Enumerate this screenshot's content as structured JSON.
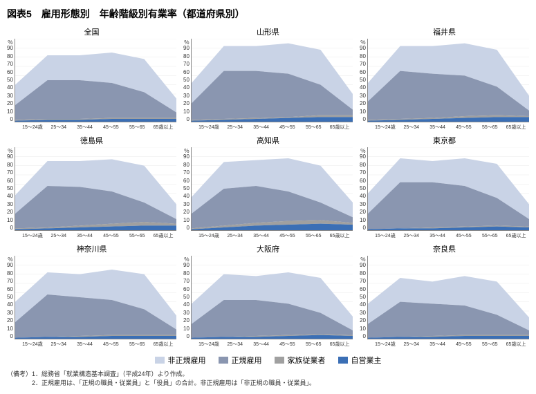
{
  "title": "図表5　雇用形態別　年齢階級別有業率（都道府県別）",
  "y_unit": "％",
  "y_ticks": [
    0,
    10,
    20,
    30,
    40,
    50,
    60,
    70,
    80,
    90
  ],
  "x_labels": [
    "15～24歳",
    "25～34",
    "35～44",
    "45～55",
    "55～65",
    "65歳以上"
  ],
  "colors": {
    "nonregular": "#c9d3e6",
    "regular": "#8a96b0",
    "family": "#a0a0a0",
    "self": "#3b6fb5",
    "grid": "#eeeeee",
    "axis": "#888888"
  },
  "legend": [
    {
      "label": "非正規雇用",
      "color": "#c9d3e6"
    },
    {
      "label": "正規雇用",
      "color": "#8a96b0"
    },
    {
      "label": "家族従業者",
      "color": "#a0a0a0"
    },
    {
      "label": "自営業主",
      "color": "#3b6fb5"
    }
  ],
  "panels": [
    {
      "title": "全国",
      "series": {
        "self": [
          1,
          2,
          2,
          3,
          3,
          3
        ],
        "family": [
          2,
          3,
          3,
          4,
          4,
          4
        ],
        "regular": [
          18,
          45,
          45,
          42,
          32,
          10
        ],
        "nonregular": [
          40,
          72,
          72,
          75,
          68,
          25
        ]
      }
    },
    {
      "title": "山形県",
      "series": {
        "self": [
          1,
          2,
          3,
          4,
          5,
          5
        ],
        "family": [
          2,
          3,
          4,
          5,
          7,
          7
        ],
        "regular": [
          20,
          55,
          55,
          52,
          40,
          13
        ],
        "nonregular": [
          42,
          82,
          82,
          85,
          78,
          30
        ]
      }
    },
    {
      "title": "福井県",
      "series": {
        "self": [
          1,
          2,
          3,
          4,
          5,
          5
        ],
        "family": [
          2,
          3,
          4,
          6,
          7,
          6
        ],
        "regular": [
          22,
          55,
          52,
          50,
          38,
          12
        ],
        "nonregular": [
          42,
          82,
          82,
          85,
          78,
          28
        ]
      }
    },
    {
      "title": "徳島県",
      "series": {
        "self": [
          1,
          2,
          3,
          4,
          5,
          5
        ],
        "family": [
          2,
          3,
          5,
          7,
          9,
          7
        ],
        "regular": [
          18,
          48,
          47,
          42,
          30,
          12
        ],
        "nonregular": [
          38,
          75,
          75,
          77,
          70,
          28
        ]
      }
    },
    {
      "title": "高知県",
      "series": {
        "self": [
          1,
          3,
          5,
          6,
          7,
          6
        ],
        "family": [
          2,
          5,
          8,
          10,
          11,
          8
        ],
        "regular": [
          18,
          45,
          48,
          42,
          30,
          14
        ],
        "nonregular": [
          36,
          74,
          76,
          78,
          70,
          30
        ]
      }
    },
    {
      "title": "東京都",
      "series": {
        "self": [
          1,
          2,
          2,
          3,
          4,
          3
        ],
        "family": [
          1,
          2,
          3,
          4,
          5,
          4
        ],
        "regular": [
          18,
          52,
          52,
          48,
          35,
          12
        ],
        "nonregular": [
          40,
          78,
          75,
          78,
          72,
          28
        ]
      }
    },
    {
      "title": "神奈川県",
      "series": {
        "self": [
          1,
          2,
          2,
          3,
          3,
          3
        ],
        "family": [
          1,
          2,
          3,
          4,
          4,
          4
        ],
        "regular": [
          18,
          48,
          45,
          42,
          32,
          10
        ],
        "nonregular": [
          40,
          72,
          70,
          75,
          70,
          25
        ]
      }
    },
    {
      "title": "大阪府",
      "series": {
        "self": [
          1,
          2,
          2,
          3,
          4,
          3
        ],
        "family": [
          1,
          2,
          3,
          4,
          5,
          4
        ],
        "regular": [
          16,
          42,
          42,
          38,
          28,
          9
        ],
        "nonregular": [
          38,
          70,
          68,
          72,
          66,
          24
        ]
      }
    },
    {
      "title": "奈良県",
      "series": {
        "self": [
          1,
          2,
          2,
          3,
          3,
          3
        ],
        "family": [
          1,
          2,
          3,
          4,
          4,
          4
        ],
        "regular": [
          16,
          40,
          38,
          36,
          26,
          9
        ],
        "nonregular": [
          38,
          66,
          62,
          68,
          62,
          23
        ]
      }
    }
  ],
  "notes": [
    "（備考）1．総務省「就業構造基本調査」（平成24年）より作成。",
    "　　　　2．正規雇用は、「正規の職員・従業員」と「役員」の合計。非正規雇用は「非正規の職員・従業員」。"
  ]
}
